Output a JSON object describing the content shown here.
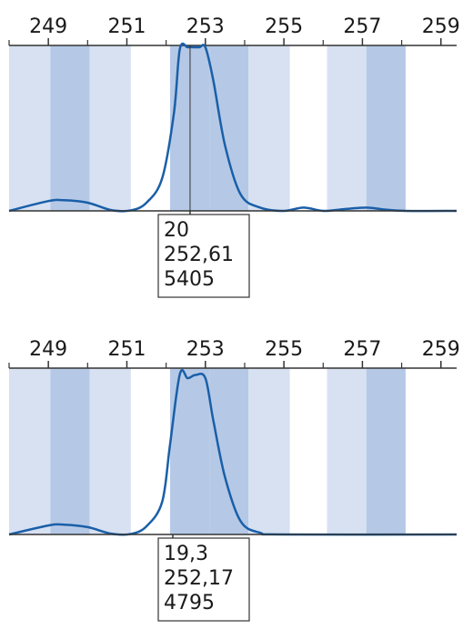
{
  "colors": {
    "band_light": "#d7e1f2",
    "band_dark": "#b5c9e6",
    "curve": "#1a5fa8",
    "axis": "#333333"
  },
  "chart_data": [
    {
      "type": "line",
      "xlim": [
        248,
        259.4
      ],
      "ylim": [
        0,
        1
      ],
      "x_ticks": [
        249,
        251,
        253,
        255,
        257,
        259
      ],
      "x_tick_labels": [
        "249",
        "251",
        "253",
        "255",
        "257",
        "259"
      ],
      "minor_ticks": [
        248,
        250,
        252,
        254,
        256,
        258
      ],
      "bands": [
        {
          "from": 248,
          "to": 249.05,
          "shade": "light"
        },
        {
          "from": 249.05,
          "to": 250.05,
          "shade": "dark"
        },
        {
          "from": 250.05,
          "to": 251.1,
          "shade": "light"
        },
        {
          "from": 252.1,
          "to": 253.1,
          "shade": "dark"
        },
        {
          "from": 253.1,
          "to": 254.1,
          "shade": "dark"
        },
        {
          "from": 254.1,
          "to": 255.15,
          "shade": "light"
        },
        {
          "from": 256.1,
          "to": 257.1,
          "shade": "light"
        },
        {
          "from": 257.1,
          "to": 258.1,
          "shade": "dark"
        }
      ],
      "series": [
        {
          "x": [
            248,
            249,
            249.4,
            250.0,
            250.6,
            251.1,
            251.5,
            251.9,
            252.2,
            252.35,
            252.55,
            252.7,
            252.85,
            253.0,
            253.2,
            253.5,
            253.9,
            254.4,
            255.0,
            255.5,
            256.0,
            256.5,
            257.1,
            257.5,
            258.1,
            259.4
          ],
          "y": [
            0,
            0.06,
            0.065,
            0.05,
            0.005,
            0.003,
            0.05,
            0.2,
            0.6,
            0.99,
            1.0,
            1.0,
            1.0,
            1.0,
            0.8,
            0.4,
            0.1,
            0.02,
            0.0,
            0.02,
            0.0,
            0.01,
            0.02,
            0.01,
            0.0,
            0.0
          ]
        }
      ],
      "marker_x": 252.61,
      "readout": [
        "20",
        "252,61",
        "5405"
      ]
    },
    {
      "type": "line",
      "xlim": [
        248,
        259.4
      ],
      "ylim": [
        0,
        1
      ],
      "x_ticks": [
        249,
        251,
        253,
        255,
        257,
        259
      ],
      "x_tick_labels": [
        "249",
        "251",
        "253",
        "255",
        "257",
        "259"
      ],
      "minor_ticks": [
        248,
        250,
        252,
        254,
        256,
        258
      ],
      "bands": [
        {
          "from": 248,
          "to": 249.05,
          "shade": "light"
        },
        {
          "from": 249.05,
          "to": 250.05,
          "shade": "dark"
        },
        {
          "from": 250.05,
          "to": 251.1,
          "shade": "light"
        },
        {
          "from": 252.1,
          "to": 253.1,
          "shade": "dark"
        },
        {
          "from": 253.1,
          "to": 254.1,
          "shade": "dark"
        },
        {
          "from": 254.1,
          "to": 255.15,
          "shade": "light"
        },
        {
          "from": 256.1,
          "to": 257.1,
          "shade": "light"
        },
        {
          "from": 257.1,
          "to": 258.1,
          "shade": "dark"
        }
      ],
      "series": [
        {
          "x": [
            248,
            249,
            249.4,
            250.0,
            250.6,
            251.1,
            251.5,
            251.9,
            252.1,
            252.35,
            252.55,
            252.75,
            253.0,
            253.2,
            253.5,
            253.9,
            254.4,
            255.0,
            259.4
          ],
          "y": [
            0,
            0.055,
            0.06,
            0.045,
            0.005,
            0.003,
            0.05,
            0.2,
            0.55,
            0.98,
            0.955,
            0.975,
            0.955,
            0.7,
            0.35,
            0.08,
            0.01,
            0.0,
            0.0
          ]
        }
      ],
      "marker_x": 252.17,
      "readout": [
        "19,3",
        "252,17",
        "4795"
      ]
    }
  ]
}
